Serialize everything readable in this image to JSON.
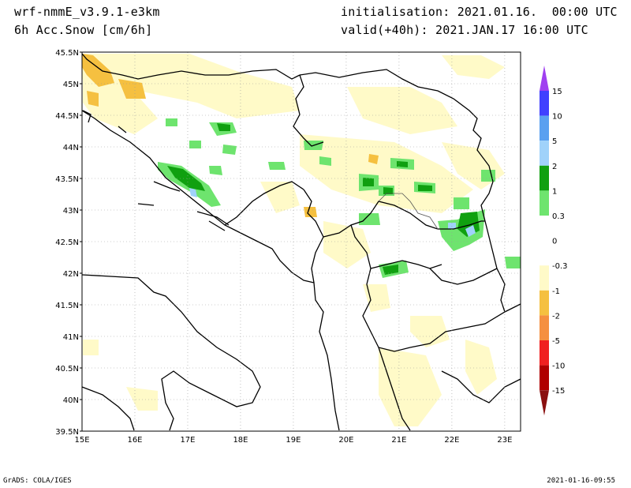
{
  "header": {
    "model": "wrf-nmmE_v3.9.1-e3km",
    "field": "6h Acc.Snow [cm/6h]",
    "init": "initialisation: 2021.01.16.  00:00 UTC",
    "valid": "valid(+40h): 2021.JAN.17 16:00 UTC"
  },
  "footer": {
    "left": "GrADS: COLA/IGES",
    "right": "2021-01-16-09:55"
  },
  "map": {
    "lon_range": [
      15,
      23.3
    ],
    "lat_range": [
      39.5,
      45.5
    ],
    "x_ticks": [
      "15E",
      "16E",
      "17E",
      "18E",
      "19E",
      "20E",
      "21E",
      "22E",
      "23E"
    ],
    "y_ticks": [
      "45.5N",
      "45N",
      "44.5N",
      "44N",
      "43.5N",
      "43N",
      "42.5N",
      "42N",
      "41.5N",
      "41N",
      "40.5N",
      "40N",
      "39.5N"
    ],
    "grid": true
  },
  "colorbar": {
    "labels": [
      "15",
      "10",
      "5",
      "2",
      "1",
      "0.3",
      "0",
      "-0.3",
      "-1",
      "-2",
      "-5",
      "-10",
      "-15"
    ],
    "colors": [
      "#4040ff",
      "#5aa0f0",
      "#a0d2fa",
      "#10a010",
      "#6ee46e",
      "#ffffff",
      "#ffffff",
      "#fffac8",
      "#f5c040",
      "#f59040",
      "#f02020",
      "#b00000"
    ],
    "top_arrow_color": "#a040f0",
    "bottom_arrow_color": "#8a1010"
  }
}
